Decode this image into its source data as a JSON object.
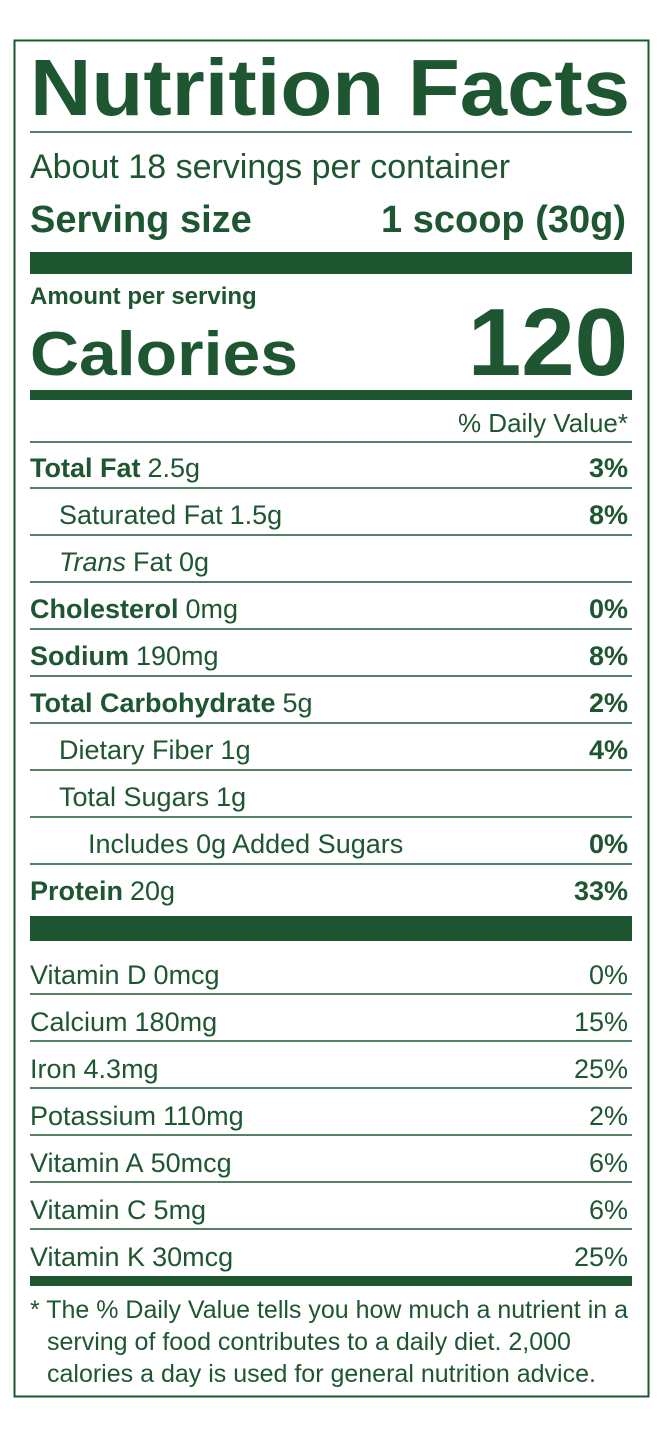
{
  "header": {
    "title": "Nutrition Facts",
    "servings": "About 18 servings per container",
    "serving_size_label": "Serving size",
    "serving_size": "1 scoop (30g)"
  },
  "calories": {
    "label_small": "Amount per serving",
    "label": "Calories",
    "value": "120"
  },
  "dv_header": "% Daily Value*",
  "nutrients": [
    {
      "name": "Total Fat",
      "amount": "2.5g",
      "dv": "3%",
      "bold": true,
      "level": 0
    },
    {
      "name": "Saturated Fat",
      "amount": "1.5g",
      "dv": "8%",
      "bold": false,
      "level": 1
    },
    {
      "italic_prefix": "Trans",
      "name": "Fat",
      "amount": "0g",
      "bold": false,
      "level": 1
    },
    {
      "name": "Cholesterol",
      "amount": "0mg",
      "dv": "0%",
      "bold": true,
      "level": 0
    },
    {
      "name": "Sodium",
      "amount": "190mg",
      "dv": "8%",
      "bold": true,
      "level": 0
    },
    {
      "name": "Total Carbohydrate",
      "amount": "5g",
      "dv": "2%",
      "bold": true,
      "level": 0
    },
    {
      "name": "Dietary Fiber",
      "amount": "1g",
      "dv": "4%",
      "bold": false,
      "level": 1
    },
    {
      "name": "Total Sugars",
      "amount": "1g",
      "bold": false,
      "level": 1
    },
    {
      "name": "Includes 0g Added Sugars",
      "dv": "0%",
      "bold": false,
      "level": 2
    },
    {
      "name": "Protein",
      "amount": "20g",
      "dv": "33%",
      "bold": true,
      "level": 0
    }
  ],
  "vitamins": [
    {
      "name": "Vitamin D",
      "amount": "0mcg",
      "dv": "0%"
    },
    {
      "name": "Calcium",
      "amount": "180mg",
      "dv": "15%"
    },
    {
      "name": "Iron",
      "amount": "4.3mg",
      "dv": "25%"
    },
    {
      "name": "Potassium",
      "amount": "110mg",
      "dv": "2%"
    },
    {
      "name": "Vitamin A",
      "amount": "50mcg",
      "dv": "6%"
    },
    {
      "name": "Vitamin C",
      "amount": "5mg",
      "dv": "6%"
    },
    {
      "name": "Vitamin K",
      "amount": "30mcg",
      "dv": "25%"
    }
  ],
  "footnote": [
    "* The % Daily Value tells you how much a nutrient in a",
    "serving of food contributes to a daily diet. 2,000",
    "calories a day is used for general nutrition advice."
  ]
}
